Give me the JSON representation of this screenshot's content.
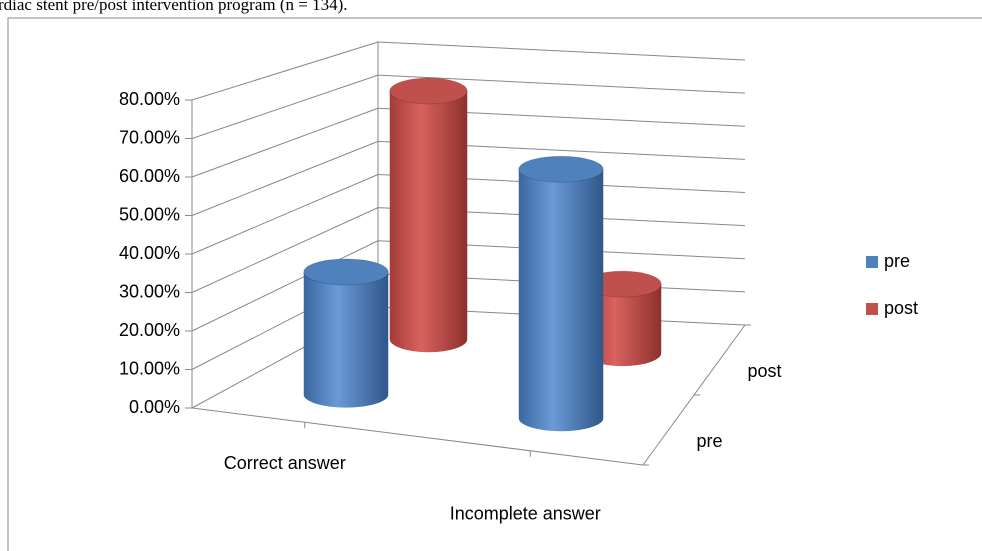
{
  "chart_data": {
    "type": "bar3d",
    "title": "rdiac stent pre/post intervention program (n = 134).",
    "categories": [
      "Correct answer",
      "Incomplete answer"
    ],
    "series": [
      {
        "name": "pre",
        "color": "#4f81bd",
        "values": [
          33,
          67
        ]
      },
      {
        "name": "post",
        "color": "#c0504d",
        "values": [
          72,
          20
        ]
      }
    ],
    "ylim": [
      0,
      80
    ],
    "yticks": [
      {
        "value": 0,
        "label": "0.00%"
      },
      {
        "value": 10,
        "label": "10.00%"
      },
      {
        "value": 20,
        "label": "20.00%"
      },
      {
        "value": 30,
        "label": "30.00%"
      },
      {
        "value": 40,
        "label": "40.00%"
      },
      {
        "value": 50,
        "label": "50.00%"
      },
      {
        "value": 60,
        "label": "60.00%"
      },
      {
        "value": 70,
        "label": "70.00%"
      },
      {
        "value": 80,
        "label": "80.00%"
      }
    ],
    "grid": true,
    "legend": "right"
  }
}
